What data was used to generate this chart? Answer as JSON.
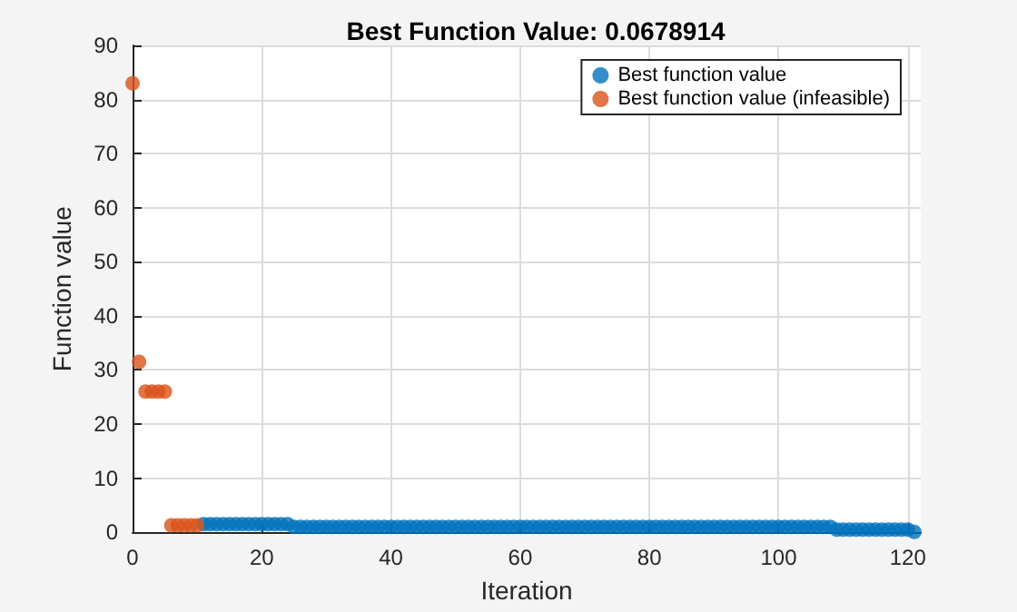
{
  "chart_data": {
    "type": "scatter",
    "title": "Best Function Value: 0.0678914",
    "xlabel": "Iteration",
    "ylabel": "Function value",
    "xlim": [
      0,
      122
    ],
    "xticks": [
      0,
      20,
      40,
      60,
      80,
      100,
      120
    ],
    "ylim": [
      0,
      90
    ],
    "yticks": [
      0,
      10,
      20,
      30,
      40,
      50,
      60,
      70,
      80,
      90
    ],
    "grid": true,
    "legend": "top right",
    "marker": "circle",
    "series": [
      {
        "name": "Best function value",
        "color": "#0072bd",
        "x": [
          11,
          12,
          13,
          14,
          15,
          16,
          17,
          18,
          19,
          20,
          21,
          22,
          23,
          24,
          25,
          26,
          27,
          28,
          29,
          30,
          31,
          32,
          33,
          34,
          35,
          36,
          37,
          38,
          39,
          40,
          41,
          42,
          43,
          44,
          45,
          46,
          47,
          48,
          49,
          50,
          51,
          52,
          53,
          54,
          55,
          56,
          57,
          58,
          59,
          60,
          61,
          62,
          63,
          64,
          65,
          66,
          67,
          68,
          69,
          70,
          71,
          72,
          73,
          74,
          75,
          76,
          77,
          78,
          79,
          80,
          81,
          82,
          83,
          84,
          85,
          86,
          87,
          88,
          89,
          90,
          91,
          92,
          93,
          94,
          95,
          96,
          97,
          98,
          99,
          100,
          101,
          102,
          103,
          104,
          105,
          106,
          107,
          108,
          109,
          110,
          111,
          112,
          113,
          114,
          115,
          116,
          117,
          118,
          119,
          120,
          121
        ],
        "values": [
          1.5,
          1.5,
          1.5,
          1.5,
          1.5,
          1.5,
          1.5,
          1.5,
          1.5,
          1.5,
          1.5,
          1.5,
          1.5,
          1.5,
          1,
          1,
          1,
          1,
          1,
          1,
          1,
          1,
          1,
          1,
          1,
          1,
          1,
          1,
          1,
          1,
          1,
          1,
          1,
          1,
          1,
          1,
          1,
          1,
          1,
          1,
          1,
          1,
          1,
          1,
          1,
          1,
          1,
          1,
          1,
          1,
          1,
          1,
          1,
          1,
          1,
          1,
          1,
          1,
          1,
          1,
          1,
          1,
          1,
          1,
          1,
          1,
          1,
          1,
          1,
          1,
          1,
          1,
          1,
          1,
          1,
          1,
          1,
          1,
          1,
          1,
          1,
          1,
          1,
          1,
          1,
          1,
          1,
          1,
          1,
          1,
          1,
          1,
          1,
          1,
          1,
          1,
          1,
          1,
          0.5,
          0.5,
          0.5,
          0.5,
          0.5,
          0.5,
          0.5,
          0.5,
          0.5,
          0.5,
          0.5,
          0.5,
          0.07
        ]
      },
      {
        "name": "Best function value (infeasible)",
        "color": "#d95319",
        "x": [
          0,
          1,
          2,
          3,
          4,
          5,
          6,
          7,
          8,
          9,
          10
        ],
        "values": [
          83,
          31.5,
          26,
          26,
          26,
          26,
          1.3,
          1.3,
          1.3,
          1.3,
          1.3
        ]
      }
    ]
  }
}
